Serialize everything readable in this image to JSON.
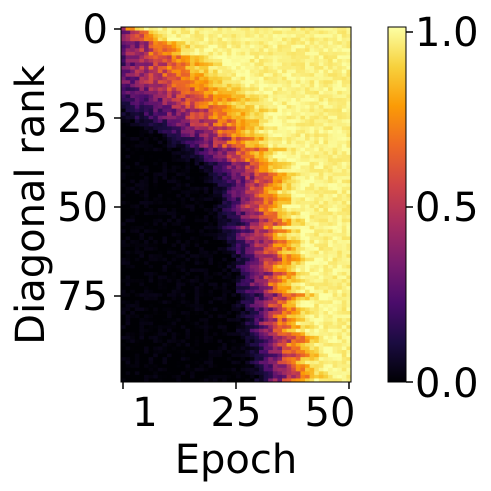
{
  "chart_data": {
    "type": "heatmap",
    "title": "",
    "xlabel": "Epoch",
    "ylabel": "Diagonal rank",
    "x_range": [
      1,
      50
    ],
    "y_range": [
      0,
      99
    ],
    "x_ticks": [
      1,
      25,
      50
    ],
    "y_ticks": [
      0,
      25,
      50,
      75
    ],
    "colorscale": "inferno",
    "colorbar": {
      "range": [
        0.0,
        1.0
      ],
      "ticks": [
        "0.0",
        "0.5",
        "1.0"
      ]
    },
    "grid": false,
    "transition": {
      "description": "value per (rank, epoch) rises from 0 to 1 as epoch increases; transition epoch grows with rank",
      "rows": [
        0,
        5,
        10,
        15,
        20,
        25,
        30,
        40,
        50,
        60,
        70,
        80,
        90,
        99
      ],
      "midpoint_epoch": [
        1.5,
        5,
        7,
        9,
        13,
        17,
        22,
        28,
        30,
        31,
        33,
        34,
        35,
        37
      ],
      "saturation_epoch": [
        8,
        18,
        26,
        33,
        36,
        38,
        38,
        40,
        41,
        42,
        43,
        44,
        45,
        46
      ]
    },
    "colors": {
      "inferno_stops": [
        "#000004",
        "#1b0c41",
        "#4a0c6b",
        "#781c6d",
        "#a52c60",
        "#cf4446",
        "#ed6925",
        "#fb9b06",
        "#f7d13d",
        "#fcffa4"
      ]
    }
  }
}
